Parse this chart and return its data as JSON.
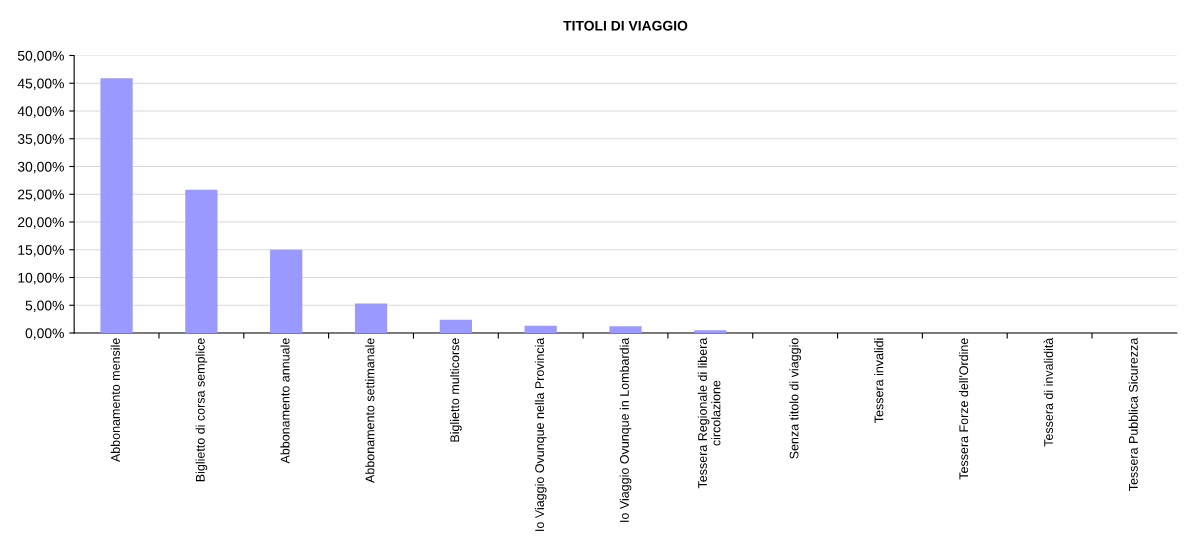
{
  "chart_data": {
    "type": "bar",
    "title": "TITOLI DI VIAGGIO",
    "categories": [
      "Abbonamento mensile",
      "Biglietto di corsa semplice",
      "Abbonamento annuale",
      "Abbonamento settimanale",
      "Biglietto multicorse",
      "Io Viaggio Ovunque nella Provincia",
      "Io Viaggio Ovunque in Lombardia",
      "Tessera Regionale di libera\ncircolazione",
      "Senza titolo di viaggio",
      "Tessera invalidi",
      "Tessera Forze dell'Ordine",
      "Tessera di invalidità",
      "Tessera Pubblica Sicurezza"
    ],
    "values": [
      45.9,
      25.8,
      15.0,
      5.3,
      2.4,
      1.3,
      1.2,
      0.5,
      0,
      0,
      0,
      0,
      0
    ],
    "color": "#9999ff",
    "ylim": [
      0,
      50
    ],
    "yticks": [
      {
        "value": 0,
        "label": "0,00%"
      },
      {
        "value": 5,
        "label": "5,00%"
      },
      {
        "value": 10,
        "label": "10,00%"
      },
      {
        "value": 15,
        "label": "15,00%"
      },
      {
        "value": 20,
        "label": "20,00%"
      },
      {
        "value": 25,
        "label": "25,00%"
      },
      {
        "value": 30,
        "label": "30,00%"
      },
      {
        "value": 35,
        "label": "35,00%"
      },
      {
        "value": 40,
        "label": "40,00%"
      },
      {
        "value": 45,
        "label": "45,00%"
      },
      {
        "value": 50,
        "label": "50,00%"
      }
    ],
    "grid": "y",
    "legend": false
  }
}
